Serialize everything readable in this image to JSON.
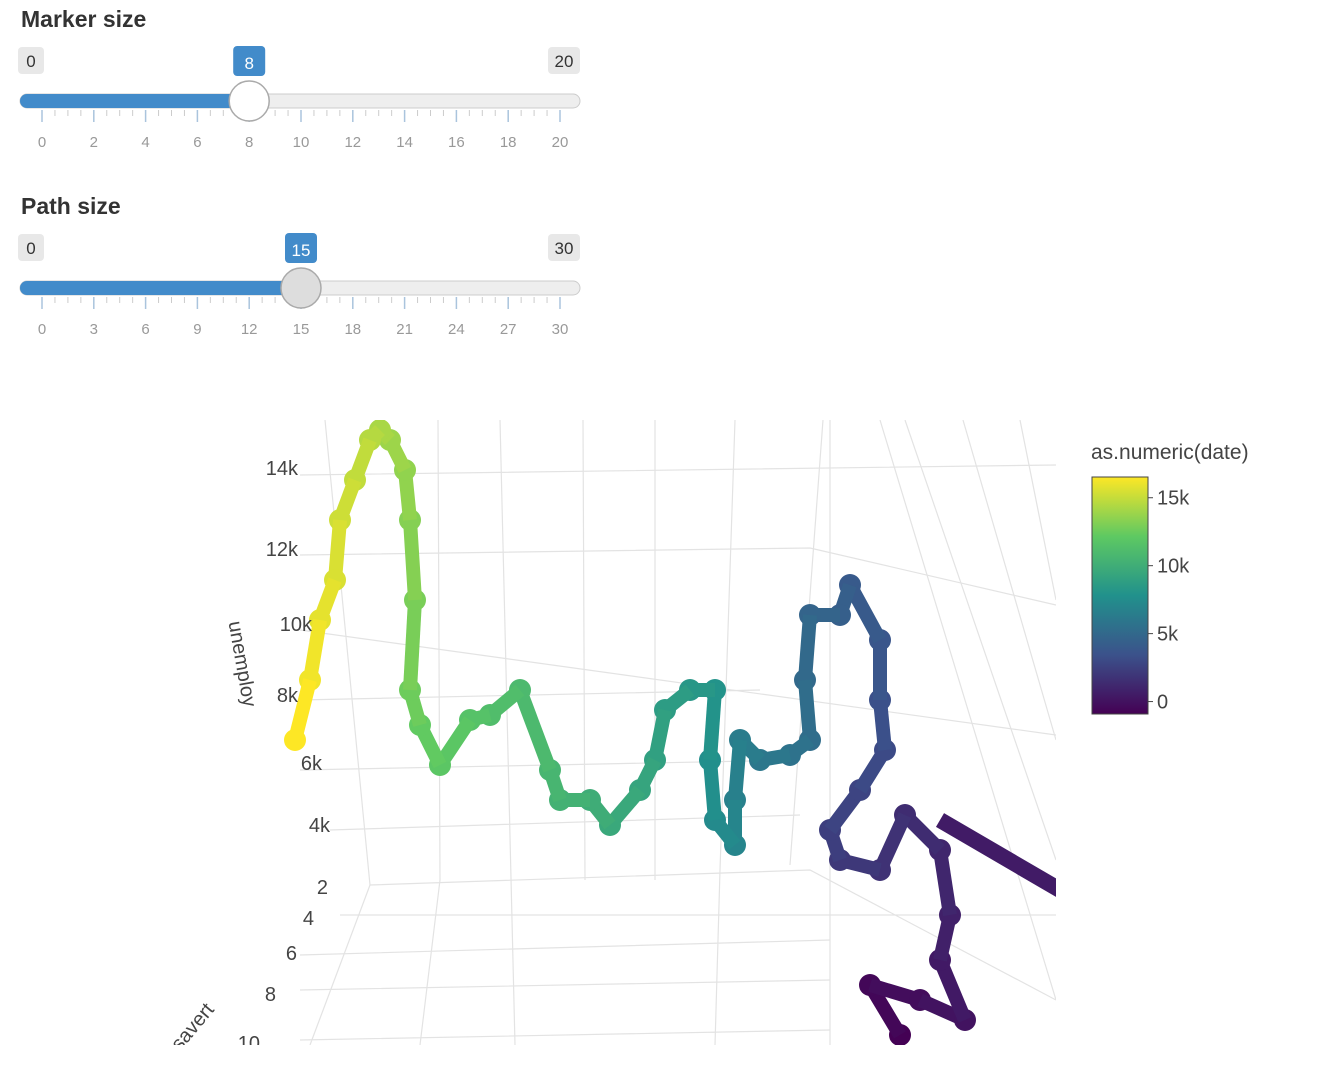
{
  "sliders": [
    {
      "label": "Marker size",
      "min": 0,
      "max": 20,
      "value": 8,
      "ticks": [
        0,
        2,
        4,
        6,
        8,
        10,
        12,
        14,
        16,
        18,
        20
      ]
    },
    {
      "label": "Path size",
      "min": 0,
      "max": 30,
      "value": 15,
      "ticks": [
        0,
        3,
        6,
        9,
        12,
        15,
        18,
        21,
        24,
        27,
        30
      ]
    }
  ],
  "plot": {
    "z_title": "unemploy",
    "z_ticks": [
      "14k",
      "12k",
      "10k",
      "8k",
      "6k",
      "4k"
    ],
    "y_title": "psavert",
    "y_ticks": [
      "2",
      "4",
      "6",
      "8",
      "10"
    ],
    "colorbar": {
      "title": "as.numeric(date)",
      "clim": [
        -915,
        16526
      ],
      "ticks": [
        {
          "value": 15000,
          "label": "15k"
        },
        {
          "value": 10000,
          "label": "10k"
        },
        {
          "value": 5000,
          "label": "5k"
        },
        0
      ]
    }
  }
}
